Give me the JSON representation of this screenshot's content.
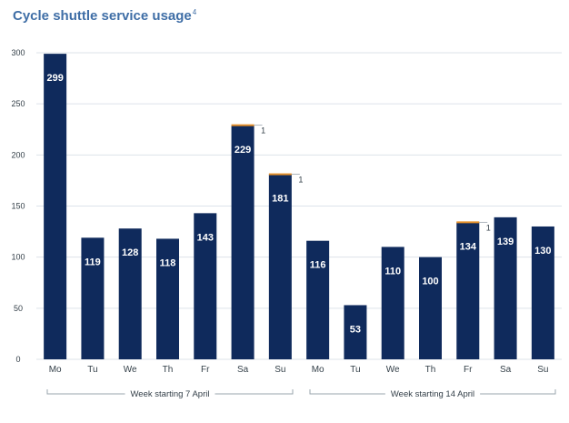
{
  "chart_data": {
    "type": "bar",
    "title": "Cycle shuttle service usage",
    "title_superscript": "4",
    "xlabel": "",
    "ylabel": "",
    "ylim": [
      0,
      300
    ],
    "yticks": [
      0,
      50,
      100,
      150,
      200,
      250,
      300
    ],
    "categories": [
      "Mo",
      "Tu",
      "We",
      "Th",
      "Fr",
      "Sa",
      "Su",
      "Mo",
      "Tu",
      "We",
      "Th",
      "Fr",
      "Sa",
      "Su"
    ],
    "values": [
      299,
      119,
      128,
      118,
      143,
      229,
      181,
      116,
      53,
      110,
      100,
      134,
      139,
      130
    ],
    "value_labels": [
      "299",
      "119",
      "128",
      "118",
      "143",
      "229",
      "181",
      "116",
      "53",
      "110",
      "100",
      "134",
      "139",
      "130"
    ],
    "extra_series": {
      "name": "additional",
      "color": "#e8922b",
      "values": [
        0,
        0,
        0,
        0,
        0,
        1,
        1,
        0,
        0,
        0,
        0,
        1,
        0,
        0
      ],
      "labels": [
        "",
        "",
        "",
        "",
        "",
        "1",
        "1",
        "",
        "",
        "",
        "",
        "1",
        "",
        ""
      ]
    },
    "groups": [
      {
        "label": "Week starting 7 April",
        "start": 0,
        "end": 6
      },
      {
        "label": "Week starting 14 April",
        "start": 7,
        "end": 13
      }
    ],
    "grid": true,
    "legend": "none",
    "colors": {
      "bar": "#0f2a5c",
      "accent": "#e8922b",
      "title": "#3f6ea6",
      "grid": "#dde3ea",
      "text": "#333f48"
    }
  }
}
